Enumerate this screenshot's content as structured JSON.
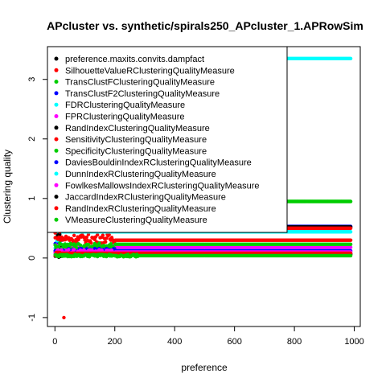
{
  "chart_data": {
    "type": "scatter",
    "title": "APcluster vs. synthetic/spirals250_APcluster_1.APRowSim",
    "xlabel": "preference",
    "ylabel": "Clustering quality",
    "xlim": [
      -25,
      1020
    ],
    "ylim": [
      -1.15,
      3.55
    ],
    "x_ticks": [
      0,
      200,
      400,
      600,
      800,
      1000
    ],
    "y_ticks": [
      -1,
      0,
      1,
      2,
      3
    ],
    "x_tick_labels": [
      "0",
      "200",
      "400",
      "600",
      "800",
      "1000"
    ],
    "y_tick_labels": [
      "-1",
      "0",
      "1",
      "2",
      "3"
    ],
    "x_range": [
      1,
      990
    ],
    "legend_position": "top-left",
    "series": [
      {
        "name": "preference.maxits.convits.dampfact",
        "color": "#000000",
        "plateau": 0.06,
        "early_min": 0.0,
        "early_max": 0.12,
        "early_end": 20
      },
      {
        "name": "SilhouetteValueRClusteringQualityMeasure",
        "color": "#ff0000",
        "plateau": 0.3,
        "early_min": 0.25,
        "early_max": 0.4,
        "early_end": 200,
        "outlier": [
          30,
          -1.0
        ]
      },
      {
        "name": "TransClustFClusteringQualityMeasure",
        "color": "#00cd00",
        "plateau": 0.95,
        "early_min": 0.05,
        "early_max": 0.95,
        "early_end": 20
      },
      {
        "name": "TransClustF2ClusteringQualityMeasure",
        "color": "#0000ff",
        "plateau": 0.53,
        "early_min": 0.1,
        "early_max": 0.53,
        "early_end": 20
      },
      {
        "name": "FDRClusteringQualityMeasure",
        "color": "#00ffff",
        "plateau": 0.44,
        "early_min": 0.1,
        "early_max": 0.44,
        "early_end": 20
      },
      {
        "name": "FPRClusteringQualityMeasure",
        "color": "#ff00ff",
        "plateau": 0.18,
        "early_min": 0.1,
        "early_max": 0.22,
        "early_end": 200
      },
      {
        "name": "RandIndexClusteringQualityMeasure",
        "color": "#000000",
        "plateau": 0.52,
        "early_min": 0.1,
        "early_max": 0.52,
        "early_end": 20
      },
      {
        "name": "SensitivityClusteringQualityMeasure",
        "color": "#ff0000",
        "plateau": 0.5,
        "early_min": 0.1,
        "early_max": 0.5,
        "early_end": 20
      },
      {
        "name": "SpecificityClusteringQualityMeasure",
        "color": "#00cd00",
        "plateau": 0.23,
        "early_min": 0.15,
        "early_max": 0.25,
        "early_end": 200
      },
      {
        "name": "DaviesBouldinIndexRClusteringQualityMeasure",
        "color": "#0000ff",
        "plateau": 0.12,
        "early_min": 0.08,
        "early_max": 0.16,
        "early_end": 200
      },
      {
        "name": "DunnIndexRClusteringQualityMeasure",
        "color": "#00ffff",
        "plateau": 3.35,
        "early_min": 3.35,
        "early_max": 3.35,
        "early_end": 1
      },
      {
        "name": "FowlkesMallowsIndexRClusteringQualityMeasure",
        "color": "#ff00ff",
        "plateau": 0.1,
        "early_min": 0.06,
        "early_max": 0.14,
        "early_end": 200
      },
      {
        "name": "JaccardIndexRClusteringQualityMeasure",
        "color": "#000000",
        "plateau": 0.07,
        "early_min": 0.02,
        "early_max": 0.1,
        "early_end": 20
      },
      {
        "name": "RandIndexRClusteringQualityMeasure",
        "color": "#ff0000",
        "plateau": 0.08,
        "early_min": 0.04,
        "early_max": 0.12,
        "early_end": 20
      },
      {
        "name": "VMeasureClusteringQualityMeasure",
        "color": "#00cd00",
        "plateau": 0.04,
        "early_min": 0.02,
        "early_max": 0.06,
        "early_end": 280
      }
    ]
  }
}
